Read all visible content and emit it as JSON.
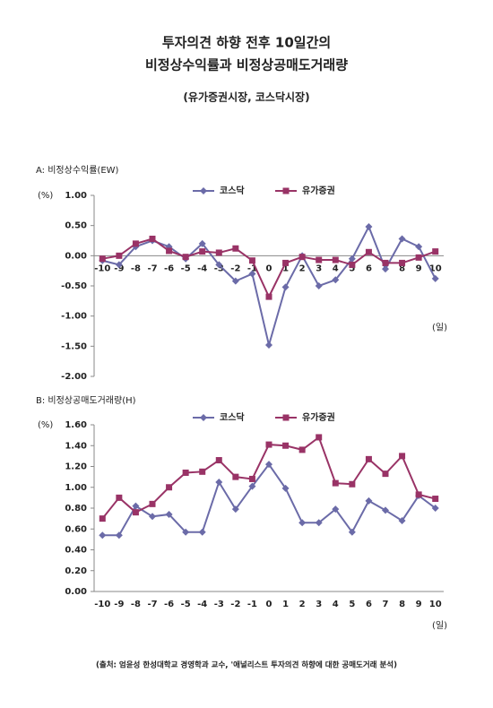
{
  "title_lines": [
    "투자의견 하향 전후 10일간의",
    "비정상수익률과 비정상공매도거래량"
  ],
  "subtitle": "(유가증권시장, 코스닥시장)",
  "source": "(출처: 엄윤성 한성대학교 경영학과 교수, '애널리스트 투자의견 하향에 대한 공매도거래 분석)",
  "chart_data": [
    {
      "type": "line",
      "title": "A: 비정상수익률(EW)",
      "ylabel": "(%)",
      "xlabel": "(일)",
      "categories": [
        -10,
        -9,
        -8,
        -7,
        -6,
        -5,
        -4,
        -3,
        -2,
        -1,
        0,
        1,
        2,
        3,
        4,
        5,
        6,
        7,
        8,
        9,
        10
      ],
      "series": [
        {
          "name": "코스닥",
          "color": "#6b6ba8",
          "marker": "diamond",
          "values": [
            -0.08,
            -0.15,
            0.15,
            0.25,
            0.15,
            -0.05,
            0.2,
            -0.15,
            -0.42,
            -0.3,
            -1.48,
            -0.52,
            0,
            -0.5,
            -0.4,
            -0.05,
            0.48,
            -0.22,
            0.28,
            0.15,
            -0.38
          ]
        },
        {
          "name": "유가증권",
          "color": "#993366",
          "marker": "square",
          "values": [
            -0.05,
            0,
            0.2,
            0.28,
            0.08,
            -0.02,
            0.07,
            0.05,
            0.12,
            -0.08,
            -0.68,
            -0.12,
            -0.02,
            -0.07,
            -0.07,
            -0.15,
            0.06,
            -0.12,
            -0.12,
            -0.03,
            0.07
          ]
        }
      ],
      "ylim": [
        -2,
        1
      ],
      "yticks": [
        {
          "value": -2,
          "label": "-2.00"
        },
        {
          "value": -1.5,
          "label": "-1.50"
        },
        {
          "value": -1,
          "label": "-1.00"
        },
        {
          "value": -0.5,
          "label": "-0.50"
        },
        {
          "value": 0,
          "label": "0.00"
        },
        {
          "value": 0.5,
          "label": "0.50"
        },
        {
          "value": 1,
          "label": "1.00"
        }
      ]
    },
    {
      "type": "line",
      "title": "B: 비정상공매도거래량(H)",
      "ylabel": "(%)",
      "xlabel": "(일)",
      "categories": [
        -10,
        -9,
        -8,
        -7,
        -6,
        -5,
        -4,
        -3,
        -2,
        -1,
        0,
        1,
        2,
        3,
        4,
        5,
        6,
        7,
        8,
        9,
        10
      ],
      "series": [
        {
          "name": "코스닥",
          "color": "#6b6ba8",
          "marker": "diamond",
          "values": [
            0.54,
            0.54,
            0.82,
            0.72,
            0.74,
            0.57,
            0.57,
            1.05,
            0.79,
            1.01,
            1.22,
            0.99,
            0.66,
            0.66,
            0.79,
            0.57,
            0.87,
            0.78,
            0.68,
            0.92,
            0.8
          ]
        },
        {
          "name": "유가증권",
          "color": "#993366",
          "marker": "square",
          "values": [
            0.7,
            0.9,
            0.76,
            0.84,
            1,
            1.14,
            1.15,
            1.26,
            1.1,
            1.08,
            1.41,
            1.4,
            1.36,
            1.48,
            1.04,
            1.03,
            1.27,
            1.13,
            1.3,
            0.93,
            0.89
          ]
        }
      ],
      "ylim": [
        0,
        1.6
      ],
      "yticks": [
        {
          "value": 0,
          "label": "0.00"
        },
        {
          "value": 0.2,
          "label": "0.20"
        },
        {
          "value": 0.4,
          "label": "0.40"
        },
        {
          "value": 0.6,
          "label": "0.60"
        },
        {
          "value": 0.8,
          "label": "0.80"
        },
        {
          "value": 1,
          "label": "1.00"
        },
        {
          "value": 1.2,
          "label": "1.20"
        },
        {
          "value": 1.4,
          "label": "1.40"
        },
        {
          "value": 1.6,
          "label": "1.60"
        }
      ]
    }
  ]
}
